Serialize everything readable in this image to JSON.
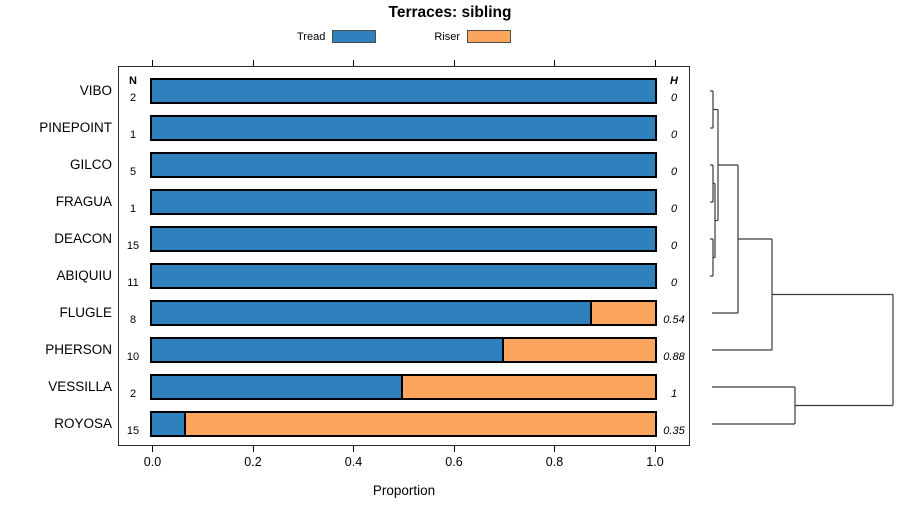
{
  "chart_data": {
    "type": "bar",
    "orientation": "horizontal-stacked",
    "title": "Terraces: sibling",
    "xlabel": "Proportion",
    "xlim": [
      0,
      1
    ],
    "xticks": [
      "0.0",
      "0.2",
      "0.4",
      "0.6",
      "0.8",
      "1.0"
    ],
    "grid": false,
    "legend_position": "top-center",
    "legend": [
      {
        "label": "Tread",
        "color": "#2E81BC"
      },
      {
        "label": "Riser",
        "color": "#FBA55F"
      }
    ],
    "n_header": "N",
    "h_header": "H",
    "categories": [
      "VIBO",
      "PINEPOINT",
      "GILCO",
      "FRAGUA",
      "DEACON",
      "ABIQUIU",
      "FLUGLE",
      "PHERSON",
      "VESSILLA",
      "ROYOSA"
    ],
    "n_values": [
      "2",
      "1",
      "5",
      "1",
      "15",
      "11",
      "8",
      "10",
      "2",
      "15"
    ],
    "h_values": [
      "0",
      "0",
      "0",
      "0",
      "0",
      "0",
      "0.54",
      "0.88",
      "1",
      "0.35"
    ],
    "series": [
      {
        "name": "Tread",
        "values": [
          1,
          1,
          1,
          1,
          1,
          1,
          0.875,
          0.7,
          0.5,
          0.067
        ]
      },
      {
        "name": "Riser",
        "values": [
          0,
          0,
          0,
          0,
          0,
          0,
          0.125,
          0.3,
          0.5,
          0.933
        ]
      }
    ],
    "colors": {
      "tread": "#2E81BC",
      "riser": "#FBA55F",
      "bar_border": "#000000",
      "box_border": "#2b2b2b",
      "dendrogram_line": "#3a3a3a"
    },
    "dendrogram": {
      "description": "right-side cluster tree over same rows, px segments [x1,y1,x2,y2]",
      "topology": "(((((VIBO,PINEPOINT),((GILCO,FRAGUA),(DEACON,ABIQUIU))),FLUGLE),PHERSON),(VESSILLA,ROYOSA))",
      "segments": [
        [
          710,
          91,
          713,
          91
        ],
        [
          710,
          128,
          713,
          128
        ],
        [
          713,
          91,
          713,
          128
        ],
        [
          713,
          109.5,
          718,
          109.5
        ],
        [
          710,
          165,
          713,
          165
        ],
        [
          710,
          202,
          713,
          202
        ],
        [
          713,
          165,
          713,
          202
        ],
        [
          713,
          183.5,
          715,
          183.5
        ],
        [
          710,
          239,
          713,
          239
        ],
        [
          710,
          276,
          713,
          276
        ],
        [
          713,
          239,
          713,
          276
        ],
        [
          713,
          257.5,
          715,
          257.5
        ],
        [
          715,
          183.5,
          715,
          257.5
        ],
        [
          715,
          220.5,
          718,
          220.5
        ],
        [
          718,
          109.5,
          718,
          220.5
        ],
        [
          718,
          165,
          738,
          165
        ],
        [
          712,
          313,
          738,
          313
        ],
        [
          738,
          165,
          738,
          313
        ],
        [
          738,
          239,
          772,
          239
        ],
        [
          712,
          350,
          772,
          350
        ],
        [
          772,
          239,
          772,
          350
        ],
        [
          772,
          294.5,
          893,
          294.5
        ],
        [
          712,
          387,
          795,
          387
        ],
        [
          712,
          424,
          795,
          424
        ],
        [
          795,
          387,
          795,
          424
        ],
        [
          795,
          405.5,
          893,
          405.5
        ],
        [
          893,
          294.5,
          893,
          405.5
        ]
      ]
    }
  }
}
